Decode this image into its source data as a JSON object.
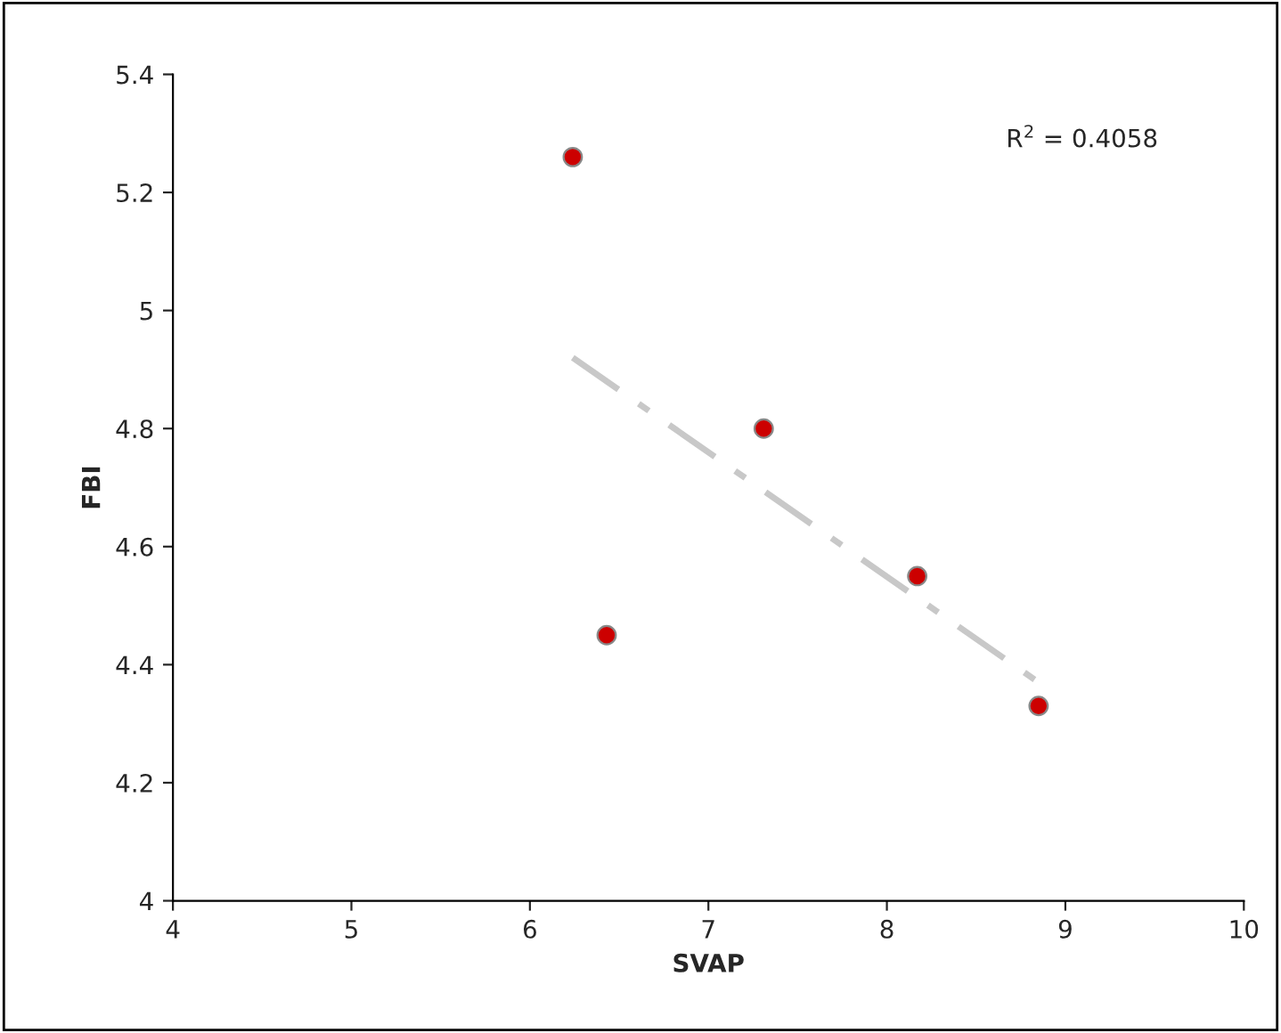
{
  "chart_data": {
    "type": "scatter",
    "xlabel": "SVAP",
    "ylabel": "FBI",
    "series": [
      {
        "color": "#cc0000",
        "marker": "circle",
        "x": [
          6.24,
          6.43,
          7.31,
          8.17,
          8.85
        ],
        "values": [
          5.26,
          4.45,
          4.8,
          4.55,
          4.33
        ]
      },
      {
        "type": "line",
        "color": "#c8c8c8",
        "line_style": "dashed",
        "marker": "none",
        "x": [
          6.24,
          8.85
        ],
        "values": [
          4.92,
          4.37
        ]
      }
    ],
    "annotations": [
      "R$^{2}$ = 0.4058"
    ],
    "xlim": [
      4,
      10
    ],
    "xticks": [
      4,
      5,
      6,
      7,
      8,
      9,
      10
    ],
    "ylim": [
      4,
      5.4
    ],
    "yticks": [
      4,
      4.2,
      4.4,
      4.6,
      4.8,
      5,
      5.2,
      5.4
    ],
    "grid": false,
    "legend": false
  }
}
